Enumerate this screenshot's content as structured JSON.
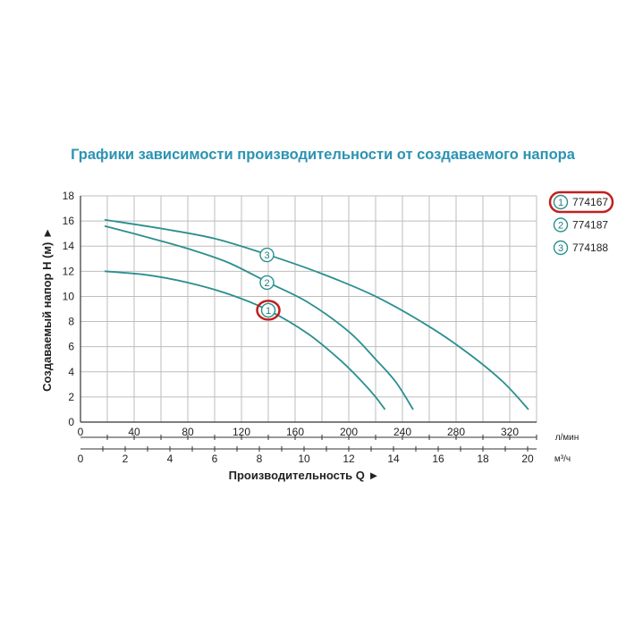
{
  "colors": {
    "title": "#2b93b3",
    "curve": "#2b8f8f",
    "highlight": "#c0201f",
    "grid": "#bdbdbd",
    "axis": "#333333"
  },
  "chart_data": {
    "type": "line",
    "title": "Графики зависимости производительности от создаваемого напора",
    "ylabel": "Создаваемый напор Н (м) ►",
    "xlabel": "Производительность Q ►",
    "x_unit_primary": "л/мин",
    "x_unit_secondary": "м³/ч",
    "xlim": [
      0,
      340
    ],
    "ylim": [
      0,
      18
    ],
    "grid": true,
    "legend_position": "right",
    "x_ticks_primary": [
      "0",
      "40",
      "80",
      "120",
      "160",
      "200",
      "240",
      "280",
      "320"
    ],
    "x_ticks_primary_values": [
      0,
      40,
      80,
      120,
      160,
      200,
      240,
      280,
      320
    ],
    "x_ticks_secondary": [
      "0",
      "2",
      "4",
      "6",
      "8",
      "10",
      "12",
      "14",
      "16",
      "18",
      "20"
    ],
    "x_ticks_secondary_values": [
      0,
      2,
      4,
      6,
      8,
      10,
      12,
      14,
      16,
      18,
      20
    ],
    "y_ticks": [
      "0",
      "2",
      "4",
      "6",
      "8",
      "10",
      "12",
      "14",
      "16",
      "18"
    ],
    "y_ticks_values": [
      0,
      2,
      4,
      6,
      8,
      10,
      12,
      14,
      16,
      18
    ],
    "series": [
      {
        "name": "774167",
        "marker": "1",
        "highlighted": true,
        "x": [
          18,
          50,
          80,
          110,
          140,
          170,
          195,
          210,
          220,
          227
        ],
        "y": [
          12.0,
          11.7,
          11.1,
          10.2,
          8.9,
          7.0,
          4.8,
          3.2,
          2.0,
          1.0
        ],
        "marker_at": [
          140,
          8.9
        ]
      },
      {
        "name": "774187",
        "marker": "2",
        "highlighted": false,
        "x": [
          18,
          50,
          80,
          110,
          140,
          170,
          200,
          220,
          235,
          248
        ],
        "y": [
          15.6,
          14.7,
          13.8,
          12.7,
          11.1,
          9.5,
          7.2,
          5.0,
          3.2,
          1.0
        ],
        "marker_at": [
          139,
          11.1
        ]
      },
      {
        "name": "774188",
        "marker": "3",
        "highlighted": false,
        "x": [
          18,
          60,
          100,
          140,
          180,
          220,
          260,
          290,
          315,
          334
        ],
        "y": [
          16.1,
          15.4,
          14.6,
          13.3,
          11.8,
          10.0,
          7.6,
          5.4,
          3.2,
          1.0
        ],
        "marker_at": [
          139,
          13.3
        ]
      }
    ]
  }
}
